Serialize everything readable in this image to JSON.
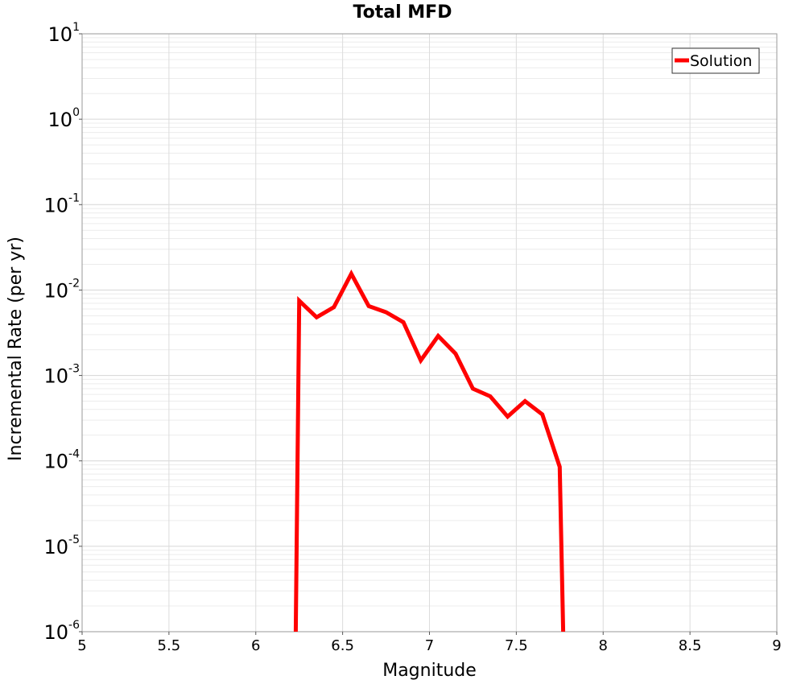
{
  "chart_data": {
    "type": "line",
    "title": "Total MFD",
    "xlabel": "Magnitude",
    "ylabel": "Incremental Rate (per yr)",
    "xlim": [
      5,
      9
    ],
    "ylim": [
      1e-06,
      10
    ],
    "yscale": "log",
    "grid": true,
    "legend_position": "top-right",
    "x_ticks": [
      "5",
      "5.5",
      "6",
      "6.5",
      "7",
      "7.5",
      "8",
      "8.5",
      "9"
    ],
    "y_ticks": [
      {
        "base": "10",
        "exp": "-6"
      },
      {
        "base": "10",
        "exp": "-5"
      },
      {
        "base": "10",
        "exp": "-4"
      },
      {
        "base": "10",
        "exp": "-3"
      },
      {
        "base": "10",
        "exp": "-2"
      },
      {
        "base": "10",
        "exp": "-1"
      },
      {
        "base": "10",
        "exp": "0"
      },
      {
        "base": "10",
        "exp": "1"
      }
    ],
    "series": [
      {
        "name": "Solution",
        "color": "#ff0000",
        "x": [
          6.23,
          6.25,
          6.35,
          6.45,
          6.55,
          6.65,
          6.75,
          6.85,
          6.95,
          7.05,
          7.15,
          7.25,
          7.35,
          7.45,
          7.55,
          7.65,
          7.75,
          7.77
        ],
        "y": [
          1e-06,
          0.0075,
          0.0048,
          0.0063,
          0.0155,
          0.0065,
          0.0055,
          0.0042,
          0.0015,
          0.0029,
          0.0018,
          0.0007,
          0.00057,
          0.00033,
          0.0005,
          0.00035,
          8.5e-05,
          1e-06
        ]
      }
    ]
  }
}
